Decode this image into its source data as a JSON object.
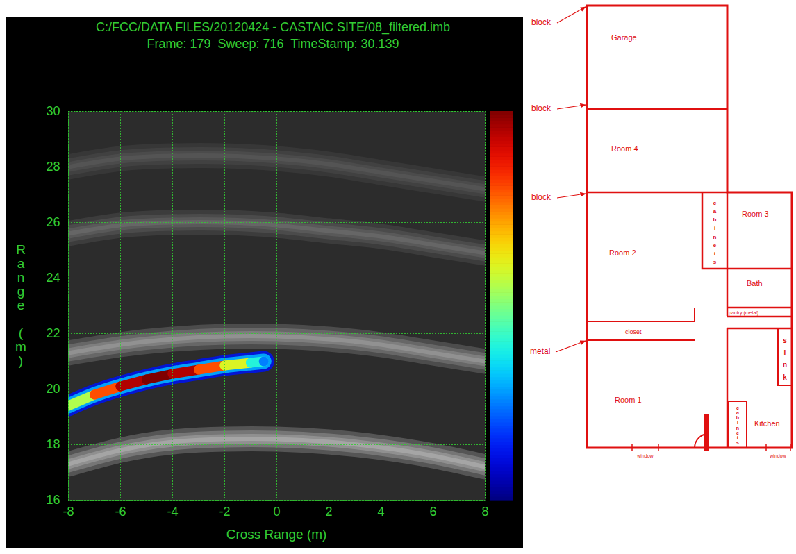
{
  "chart_data": {
    "type": "radar_image",
    "title": "C:/FCC/DATA FILES/20120424 - CASTAIC SITE/08_filtered.imb",
    "subtitle": "Frame: 179  Sweep: 716  TimeStamp: 30.139",
    "xlabel": "Cross Range (m)",
    "ylabel": "Range (m)",
    "xlim": [
      -8,
      8
    ],
    "xticks": [
      -8,
      -6,
      -4,
      -2,
      0,
      2,
      4,
      6,
      8
    ],
    "ylim": [
      16,
      30
    ],
    "yticks": [
      16,
      18,
      20,
      22,
      24,
      26,
      28,
      30
    ],
    "grid": true,
    "clim": [
      0,
      1
    ],
    "clutter": [
      {
        "x": [
          -8,
          -6,
          -4,
          -2,
          0,
          2,
          4,
          6,
          8
        ],
        "y": [
          17.3,
          17.8,
          18.1,
          18.2,
          18.2,
          18.1,
          17.9,
          17.6,
          17.2
        ],
        "intensity": 0.9
      },
      {
        "x": [
          -8,
          -6,
          -4,
          -2,
          0,
          2,
          4,
          6,
          8
        ],
        "y": [
          21.3,
          21.6,
          21.8,
          21.9,
          21.9,
          21.8,
          21.6,
          21.3,
          21.0
        ],
        "intensity": 0.7
      },
      {
        "x": [
          -8,
          -6,
          -4,
          -2,
          0,
          2,
          4,
          6,
          8
        ],
        "y": [
          25.6,
          25.9,
          26.0,
          26.0,
          25.9,
          25.7,
          25.5,
          25.2,
          24.9
        ],
        "intensity": 0.35
      },
      {
        "x": [
          -8,
          -6,
          -4,
          -2,
          0,
          2,
          4,
          6,
          8
        ],
        "y": [
          28.0,
          28.3,
          28.4,
          28.4,
          28.3,
          28.1,
          27.8,
          27.5,
          27.2
        ],
        "intensity": 0.25
      }
    ],
    "target": {
      "x": [
        -8,
        -7,
        -6,
        -5,
        -4,
        -3,
        -2,
        -1,
        -0.5
      ],
      "y": [
        19.4,
        19.8,
        20.1,
        20.35,
        20.55,
        20.7,
        20.85,
        20.95,
        21.0
      ],
      "intensity": [
        0.55,
        0.8,
        0.95,
        1.0,
        0.95,
        0.8,
        0.6,
        0.4,
        0.25
      ]
    }
  },
  "floor_plan": {
    "rooms": {
      "garage": "Garage",
      "room4": "Room 4",
      "room2": "Room 2",
      "room3": "Room 3",
      "bath": "Bath",
      "closet": "closet",
      "pantry": "pantry (metal)",
      "room1": "Room 1",
      "kitchen": "Kitchen"
    },
    "fixtures": {
      "upper_cabinets": "cabinets",
      "sink": "sink",
      "lower_cabinets": "cabinets"
    },
    "windows": [
      "window",
      "window"
    ],
    "wall_materials": [
      "block",
      "block",
      "block",
      "metal"
    ]
  }
}
